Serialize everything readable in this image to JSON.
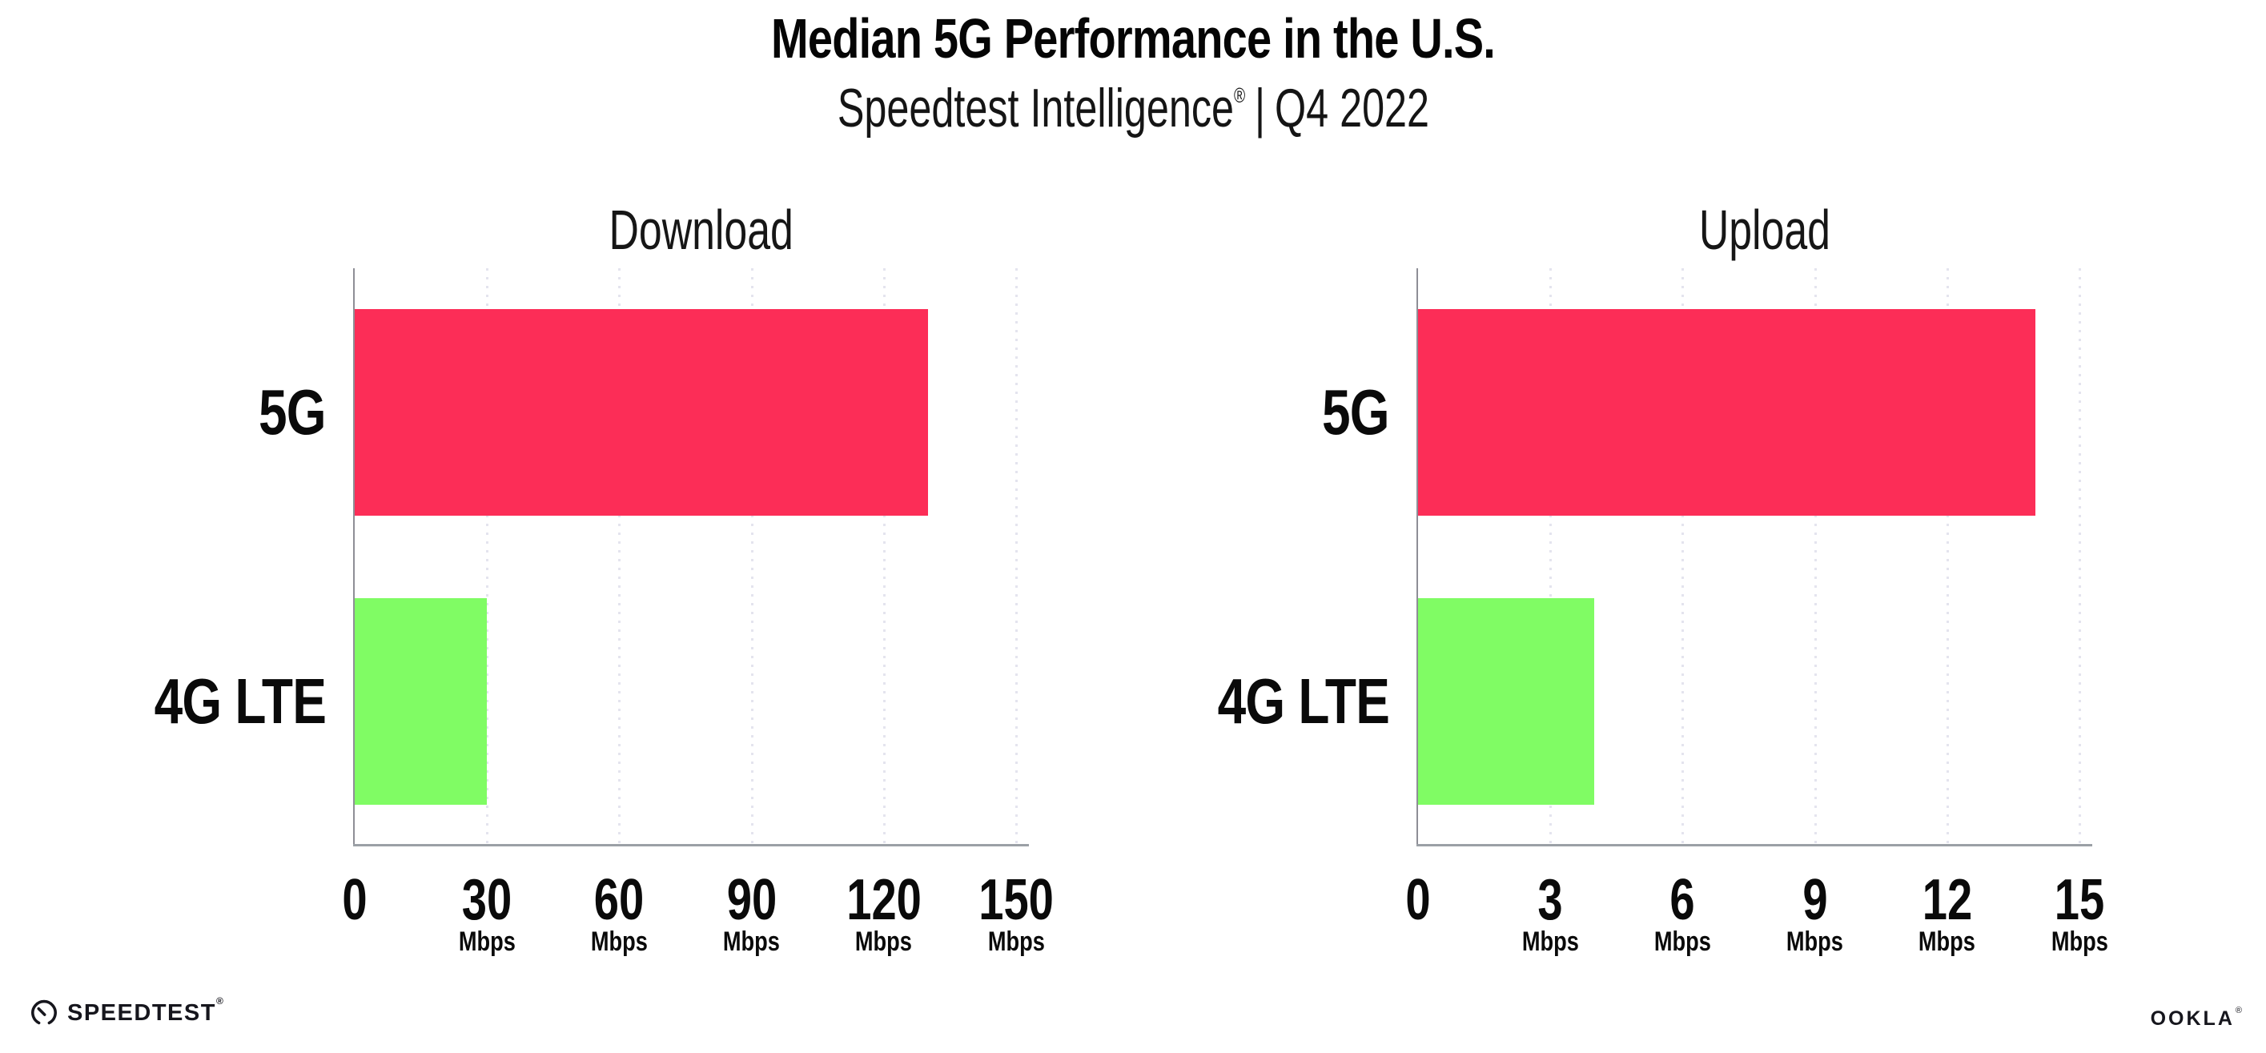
{
  "header": {
    "title": "Median 5G Performance in the U.S.",
    "subtitle_brand": "Speedtest Intelligence",
    "subtitle_reg": "®",
    "subtitle_sep": "|",
    "subtitle_period": "Q4 2022"
  },
  "footer": {
    "speedtest_label": "SPEEDTEST",
    "speedtest_mark": "®",
    "ookla_label": "OOKLA",
    "ookla_mark": "®"
  },
  "colors": {
    "bar_5g": "#FC2D57",
    "bar_4g_lte": "#80FC64",
    "gridline": "#E4E4EE",
    "x_axis": "#9BA0A6",
    "y_axis": "#8E8E96",
    "text": "#0A0A0A"
  },
  "chart_data": [
    {
      "type": "bar",
      "orientation": "horizontal",
      "title": "Download",
      "categories": [
        "5G",
        "4G LTE"
      ],
      "values": [
        130,
        30
      ],
      "unit": "Mbps",
      "xlim": [
        0,
        150
      ],
      "ticks": [
        0,
        30,
        60,
        90,
        120,
        150
      ],
      "bar_colors": [
        "#FC2D57",
        "#80FC64"
      ],
      "grid": "dotted-vertical",
      "legend": "none"
    },
    {
      "type": "bar",
      "orientation": "horizontal",
      "title": "Upload",
      "categories": [
        "5G",
        "4G LTE"
      ],
      "values": [
        14,
        4
      ],
      "unit": "Mbps",
      "xlim": [
        0,
        15
      ],
      "ticks": [
        0,
        3,
        6,
        9,
        12,
        15
      ],
      "bar_colors": [
        "#FC2D57",
        "#80FC64"
      ],
      "grid": "dotted-vertical",
      "legend": "none"
    }
  ]
}
